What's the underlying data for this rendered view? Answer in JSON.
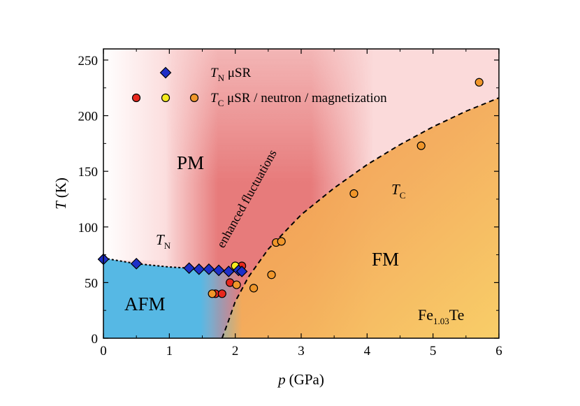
{
  "chart_data": {
    "type": "scatter",
    "title": "",
    "xlabel": {
      "main": "p",
      "unit": "(GPa)"
    },
    "ylabel": {
      "main": "T",
      "unit": "(K)"
    },
    "xlim": [
      0,
      6
    ],
    "ylim": [
      0,
      260
    ],
    "xticks": [
      "0",
      "1",
      "2",
      "3",
      "4",
      "5",
      "6"
    ],
    "yticks": [
      "0",
      "50",
      "100",
      "150",
      "200",
      "250"
    ],
    "grid": false,
    "legend": {
      "placement": "top-left",
      "entries": [
        {
          "symbol": "diamond",
          "text_main": "T",
          "text_sub": "N",
          "text_rest": " μSR"
        },
        {
          "symbol": "circles",
          "text_main": "T",
          "text_sub": "C",
          "text_rest": " μSR / neutron / magnetization"
        }
      ]
    },
    "regions": {
      "pm": "PM",
      "afm": "AFM",
      "fm": "FM",
      "enhanced": "enhanced fluctuations",
      "tn_main": "T",
      "tn_sub": "N",
      "tc_main": "T",
      "tc_sub": "C",
      "compound_main": "Fe",
      "compound_sub": "1.03",
      "compound_rest": "Te"
    },
    "series": [
      {
        "name": "TN μSR",
        "marker": "diamond",
        "color": "#1e2fc8",
        "points": [
          [
            0.0,
            71
          ],
          [
            0.5,
            67
          ],
          [
            1.3,
            63
          ],
          [
            1.45,
            62
          ],
          [
            1.6,
            62
          ],
          [
            1.75,
            61
          ],
          [
            1.9,
            60
          ],
          [
            2.05,
            61
          ],
          [
            2.1,
            60
          ]
        ]
      },
      {
        "name": "TC μSR",
        "marker": "circle",
        "color": "#e8281e",
        "points": [
          [
            1.7,
            40
          ],
          [
            1.8,
            40
          ],
          [
            1.92,
            50
          ],
          [
            2.1,
            65
          ]
        ]
      },
      {
        "name": "TC neutron",
        "marker": "circle",
        "color": "#f5ea1e",
        "points": [
          [
            2.0,
            65
          ]
        ]
      },
      {
        "name": "TC magnetization",
        "marker": "circle",
        "color": "#f0962a",
        "points": [
          [
            1.65,
            40
          ],
          [
            2.02,
            48
          ],
          [
            2.28,
            45
          ],
          [
            2.55,
            57
          ],
          [
            2.62,
            86
          ],
          [
            2.7,
            87
          ],
          [
            3.8,
            130
          ],
          [
            4.82,
            173
          ],
          [
            5.7,
            230
          ]
        ]
      }
    ],
    "tn_line": [
      [
        0.0,
        72
      ],
      [
        0.5,
        67
      ],
      [
        1.0,
        64
      ],
      [
        1.3,
        63
      ],
      [
        2.1,
        60
      ]
    ],
    "tc_line": [
      [
        1.8,
        0
      ],
      [
        1.9,
        16
      ],
      [
        2.0,
        33
      ],
      [
        2.2,
        55
      ],
      [
        2.5,
        80
      ],
      [
        3.0,
        111
      ],
      [
        3.5,
        135
      ],
      [
        4.0,
        156
      ],
      [
        4.5,
        174
      ],
      [
        5.0,
        190
      ],
      [
        5.5,
        204
      ],
      [
        6.0,
        216
      ]
    ],
    "colors": {
      "afm": "#56b8e4",
      "fm": "#f6c05e",
      "pm": "#f7d2d3",
      "fluct": "#e36a6a"
    }
  }
}
